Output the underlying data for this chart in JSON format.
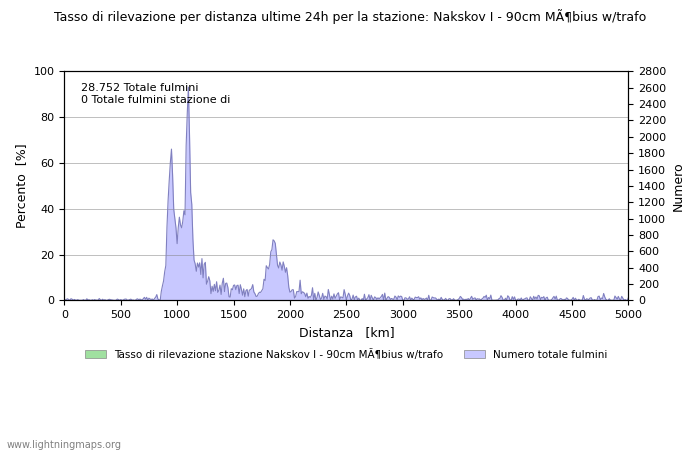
{
  "title": "Tasso di rilevazione per distanza ultime 24h per la stazione: Nakskov I - 90cm MÃ¶bius w/trafo",
  "xlabel": "Distanza   [km]",
  "ylabel_left": "Percento  [%]",
  "ylabel_right": "Numero",
  "xlim": [
    0,
    5000
  ],
  "ylim_left": [
    0,
    100
  ],
  "ylim_right": [
    0,
    2800
  ],
  "annotation": "28.752 Totale fulmini\n0 Totale fulmini stazione di",
  "legend_left": "Tasso di rilevazione stazione Nakskov I - 90cm MÃ¶bius w/trafo",
  "legend_right": "Numero totale fulmini",
  "fill_color_blue": "#c8c8ff",
  "line_color_blue": "#8080c0",
  "fill_color_green": "#a0e0a0",
  "watermark": "www.lightningmaps.org",
  "xticks": [
    0,
    500,
    1000,
    1500,
    2000,
    2500,
    3000,
    3500,
    4000,
    4500,
    5000
  ],
  "yticks_left": [
    0,
    20,
    40,
    60,
    80,
    100
  ],
  "yticks_right": [
    0,
    200,
    400,
    600,
    800,
    1000,
    1200,
    1400,
    1600,
    1800,
    2000,
    2200,
    2400,
    2600,
    2800
  ],
  "background_color": "#ffffff"
}
